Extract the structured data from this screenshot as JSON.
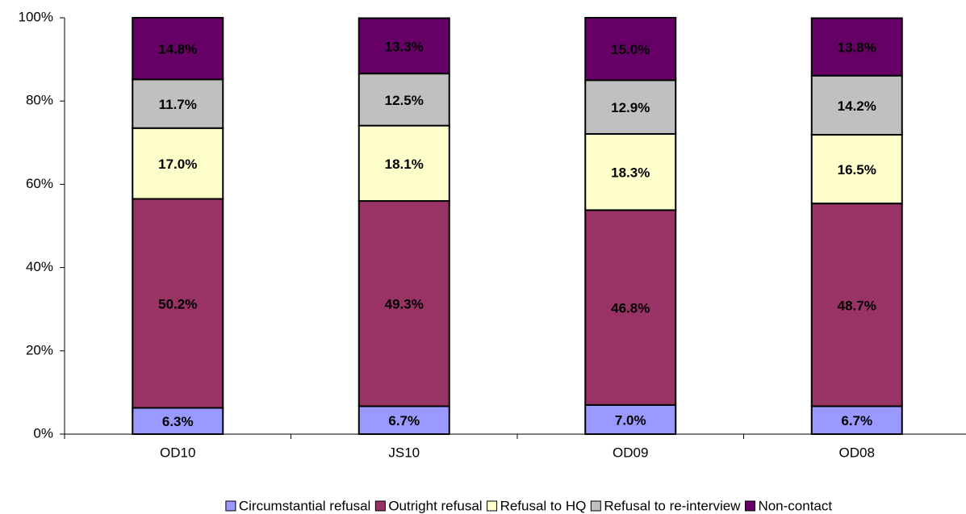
{
  "chart_data": {
    "type": "stacked_bar",
    "categories": [
      "OD10",
      "JS10",
      "OD09",
      "OD08"
    ],
    "series": [
      {
        "name": "Circumstantial refusal",
        "color": "#9999ff",
        "values": [
          6.3,
          6.7,
          7.0,
          6.7
        ],
        "value_labels": [
          "6.3%",
          "6.7%",
          "7.0%",
          "6.7%"
        ]
      },
      {
        "name": "Outright refusal",
        "color": "#993366",
        "values": [
          50.2,
          49.3,
          46.8,
          48.7
        ],
        "value_labels": [
          "50.2%",
          "49.3%",
          "46.8%",
          "48.7%"
        ]
      },
      {
        "name": "Refusal to HQ",
        "color": "#ffffcc",
        "values": [
          17.0,
          18.1,
          18.3,
          16.5
        ],
        "value_labels": [
          "17.0%",
          "18.1%",
          "18.3%",
          "16.5%"
        ]
      },
      {
        "name": "Refusal to re-interview",
        "color": "#c0c0c0",
        "values": [
          11.7,
          12.5,
          12.9,
          14.2
        ],
        "value_labels": [
          "11.7%",
          "12.5%",
          "12.9%",
          "14.2%"
        ]
      },
      {
        "name": "Non-contact",
        "color": "#660066",
        "values": [
          14.8,
          13.3,
          15.0,
          13.8
        ],
        "value_labels": [
          "14.8%",
          "13.3%",
          "15.0%",
          "13.8%"
        ]
      }
    ],
    "ylim": [
      0,
      100
    ],
    "yticks": [
      {
        "value": 0,
        "label": "0%"
      },
      {
        "value": 20,
        "label": "20%"
      },
      {
        "value": 40,
        "label": "40%"
      },
      {
        "value": 60,
        "label": "60%"
      },
      {
        "value": 80,
        "label": "80%"
      },
      {
        "value": 100,
        "label": "100%"
      }
    ],
    "legend": "bottom"
  }
}
